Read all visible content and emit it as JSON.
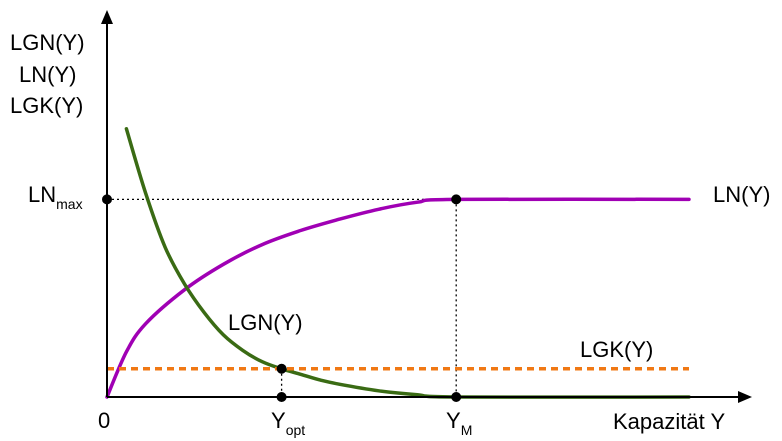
{
  "chart_data": {
    "type": "line",
    "title": "",
    "ylabel_lines": [
      "LGN(Y)",
      "LN(Y)",
      "LGK(Y)"
    ],
    "xlabel": "Kapazität Y",
    "x_ticks": [
      {
        "main": "0",
        "sub": ""
      },
      {
        "main": "Y",
        "sub": "opt"
      },
      {
        "main": "Y",
        "sub": "M"
      }
    ],
    "y_tick": {
      "main": "LN",
      "sub": "max"
    },
    "x_tick_values": {
      "zero": 0,
      "y_opt": 0.45,
      "y_m": 0.9
    },
    "y_tick_values": {
      "ln_max": 0.7
    },
    "xlim": [
      0,
      1.5
    ],
    "ylim": [
      0,
      1.3
    ],
    "series": [
      {
        "name": "LN(Y)",
        "color": "#a000b4",
        "style": "solid",
        "points": [
          [
            0,
            0
          ],
          [
            0.05,
            0.16
          ],
          [
            0.1,
            0.26
          ],
          [
            0.2,
            0.38
          ],
          [
            0.3,
            0.47
          ],
          [
            0.4,
            0.54
          ],
          [
            0.5,
            0.59
          ],
          [
            0.6,
            0.63
          ],
          [
            0.7,
            0.665
          ],
          [
            0.8,
            0.69
          ],
          [
            0.9,
            0.7
          ],
          [
            1.5,
            0.7
          ]
        ]
      },
      {
        "name": "LGN(Y)",
        "color": "#3a6b14",
        "style": "solid",
        "points": [
          [
            0.05,
            0.95
          ],
          [
            0.1,
            0.72
          ],
          [
            0.15,
            0.53
          ],
          [
            0.2,
            0.4
          ],
          [
            0.25,
            0.3
          ],
          [
            0.3,
            0.22
          ],
          [
            0.35,
            0.165
          ],
          [
            0.4,
            0.125
          ],
          [
            0.45,
            0.1
          ],
          [
            0.5,
            0.08
          ],
          [
            0.55,
            0.06
          ],
          [
            0.6,
            0.045
          ],
          [
            0.7,
            0.022
          ],
          [
            0.8,
            0.008
          ],
          [
            0.9,
            0.0
          ],
          [
            1.5,
            0.0
          ]
        ]
      },
      {
        "name": "LGK(Y)",
        "color": "#f07814",
        "style": "dashed",
        "points": [
          [
            0,
            0.1
          ],
          [
            1.5,
            0.1
          ]
        ]
      }
    ],
    "annotations": [
      {
        "text": "LN(Y)",
        "near": "LN(Y) right end"
      },
      {
        "text": "LGN(Y)",
        "near": "LGN(Y) near Y_opt"
      },
      {
        "text": "LGK(Y)",
        "near": "LGK(Y) right side"
      }
    ],
    "grid": false,
    "legend": "none"
  }
}
